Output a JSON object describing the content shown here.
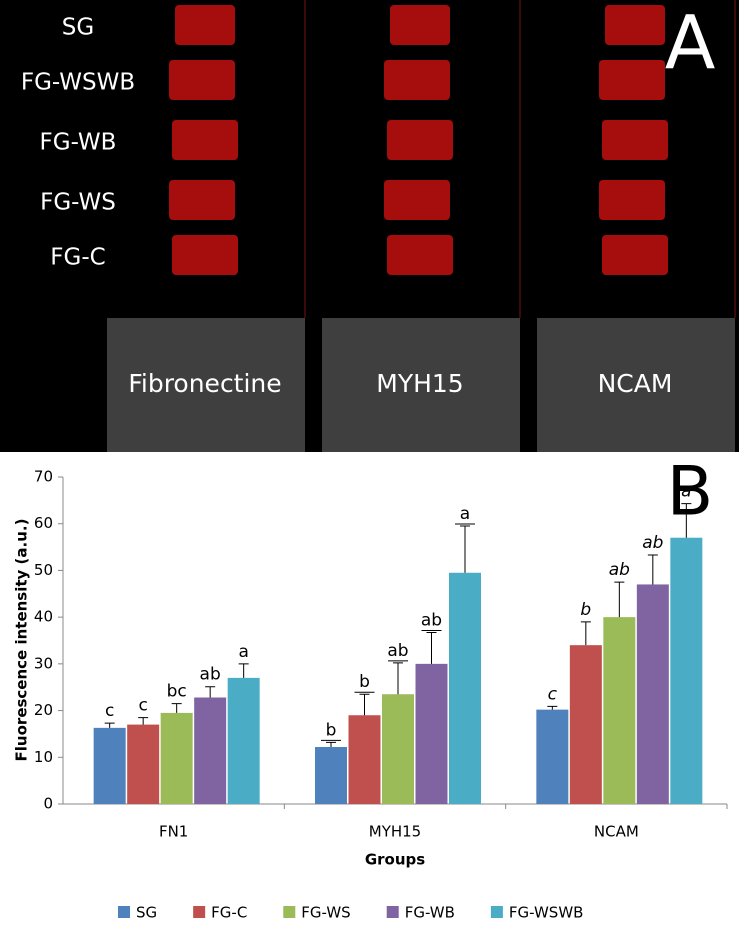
{
  "panel_a": {
    "label": "A",
    "rows": [
      "SG",
      "FG-WSWB",
      "FG-WB",
      "FG-WS",
      "FG-C"
    ],
    "columns": [
      "Fibronectine",
      "MYH15",
      "NCAM"
    ]
  },
  "panel_b": {
    "label": "B"
  },
  "chart_data": {
    "type": "bar",
    "y_label": "Fluorescence intensity (a.u.)",
    "x_label": "Groups",
    "categories": [
      "FN1",
      "MYH15",
      "NCAM"
    ],
    "letter_styles": [
      "normal",
      "underline",
      "italic"
    ],
    "series": [
      {
        "name": "SG",
        "color": "#4f81bd",
        "values": [
          16.3,
          12.2,
          20.2
        ],
        "errors": [
          1,
          1,
          0.7
        ],
        "letters": [
          "c",
          "b",
          "c"
        ]
      },
      {
        "name": "FG-C",
        "color": "#c0504d",
        "values": [
          17,
          19,
          34
        ],
        "errors": [
          1.5,
          4.5,
          5
        ],
        "letters": [
          "c",
          "b",
          "b"
        ]
      },
      {
        "name": "FG-WS",
        "color": "#9bbb59",
        "values": [
          19.5,
          23.5,
          40
        ],
        "errors": [
          2,
          6.7,
          7.5
        ],
        "letters": [
          "bc",
          "ab",
          "ab"
        ]
      },
      {
        "name": "FG-WB",
        "color": "#8064a2",
        "values": [
          22.8,
          30,
          47
        ],
        "errors": [
          2.3,
          6.7,
          6.3
        ],
        "letters": [
          "ab",
          "ab",
          "ab"
        ]
      },
      {
        "name": "FG-WSWB",
        "color": "#4bacc6",
        "values": [
          27,
          49.5,
          57
        ],
        "errors": [
          3,
          10,
          7.3
        ],
        "letters": [
          "a",
          "a",
          "a"
        ]
      }
    ],
    "ylim": [
      0,
      70
    ],
    "yticks": [
      0,
      10,
      20,
      30,
      40,
      50,
      60,
      70
    ],
    "grid": false,
    "legend": "bottom"
  }
}
